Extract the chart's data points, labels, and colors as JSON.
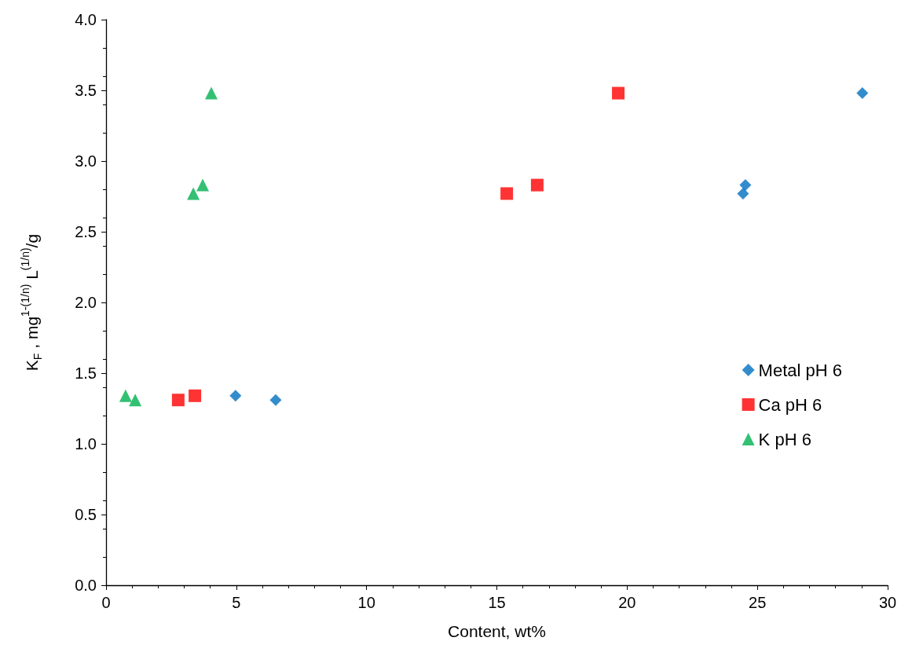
{
  "chart_data": {
    "type": "scatter",
    "xlabel": "Content, wt%",
    "ylabel": "K$_{F}$ , mg$^{1-(1/n)}$ L$^{(1/n)}$/g",
    "xlim": [
      0,
      30
    ],
    "xticks": [
      0,
      5,
      10,
      15,
      20,
      25,
      30
    ],
    "ylim": [
      0,
      4
    ],
    "yticks": [
      {
        "value": 0,
        "label": "0.0"
      },
      {
        "value": 0.5,
        "label": "0.5"
      },
      {
        "value": 1,
        "label": "1.0"
      },
      {
        "value": 1.5,
        "label": "1.5"
      },
      {
        "value": 2,
        "label": "2.0"
      },
      {
        "value": 2.5,
        "label": "2.5"
      },
      {
        "value": 3,
        "label": "3.0"
      },
      {
        "value": 3.5,
        "label": "3.5"
      },
      {
        "value": 4,
        "label": "4.0"
      }
    ],
    "grid": false,
    "legend": "right",
    "series": [
      {
        "name": "Metal pH 6",
        "color": "#0070c0",
        "marker": "diamond",
        "x": [
          4.97,
          6.51,
          24.45,
          24.54,
          29.03
        ],
        "values": [
          1.34,
          1.31,
          2.77,
          2.83,
          3.48
        ]
      },
      {
        "name": "Ca pH 6",
        "color": "#ff0000",
        "marker": "square",
        "x": [
          2.77,
          3.41,
          15.38,
          16.55,
          19.66
        ],
        "values": [
          1.31,
          1.34,
          2.77,
          2.83,
          3.48
        ]
      },
      {
        "name": "K pH 6",
        "color": "#00b050",
        "marker": "triangle",
        "x": [
          0.75,
          1.12,
          3.35,
          3.71,
          4.04
        ],
        "values": [
          1.34,
          1.31,
          2.77,
          2.83,
          3.48
        ]
      }
    ]
  }
}
